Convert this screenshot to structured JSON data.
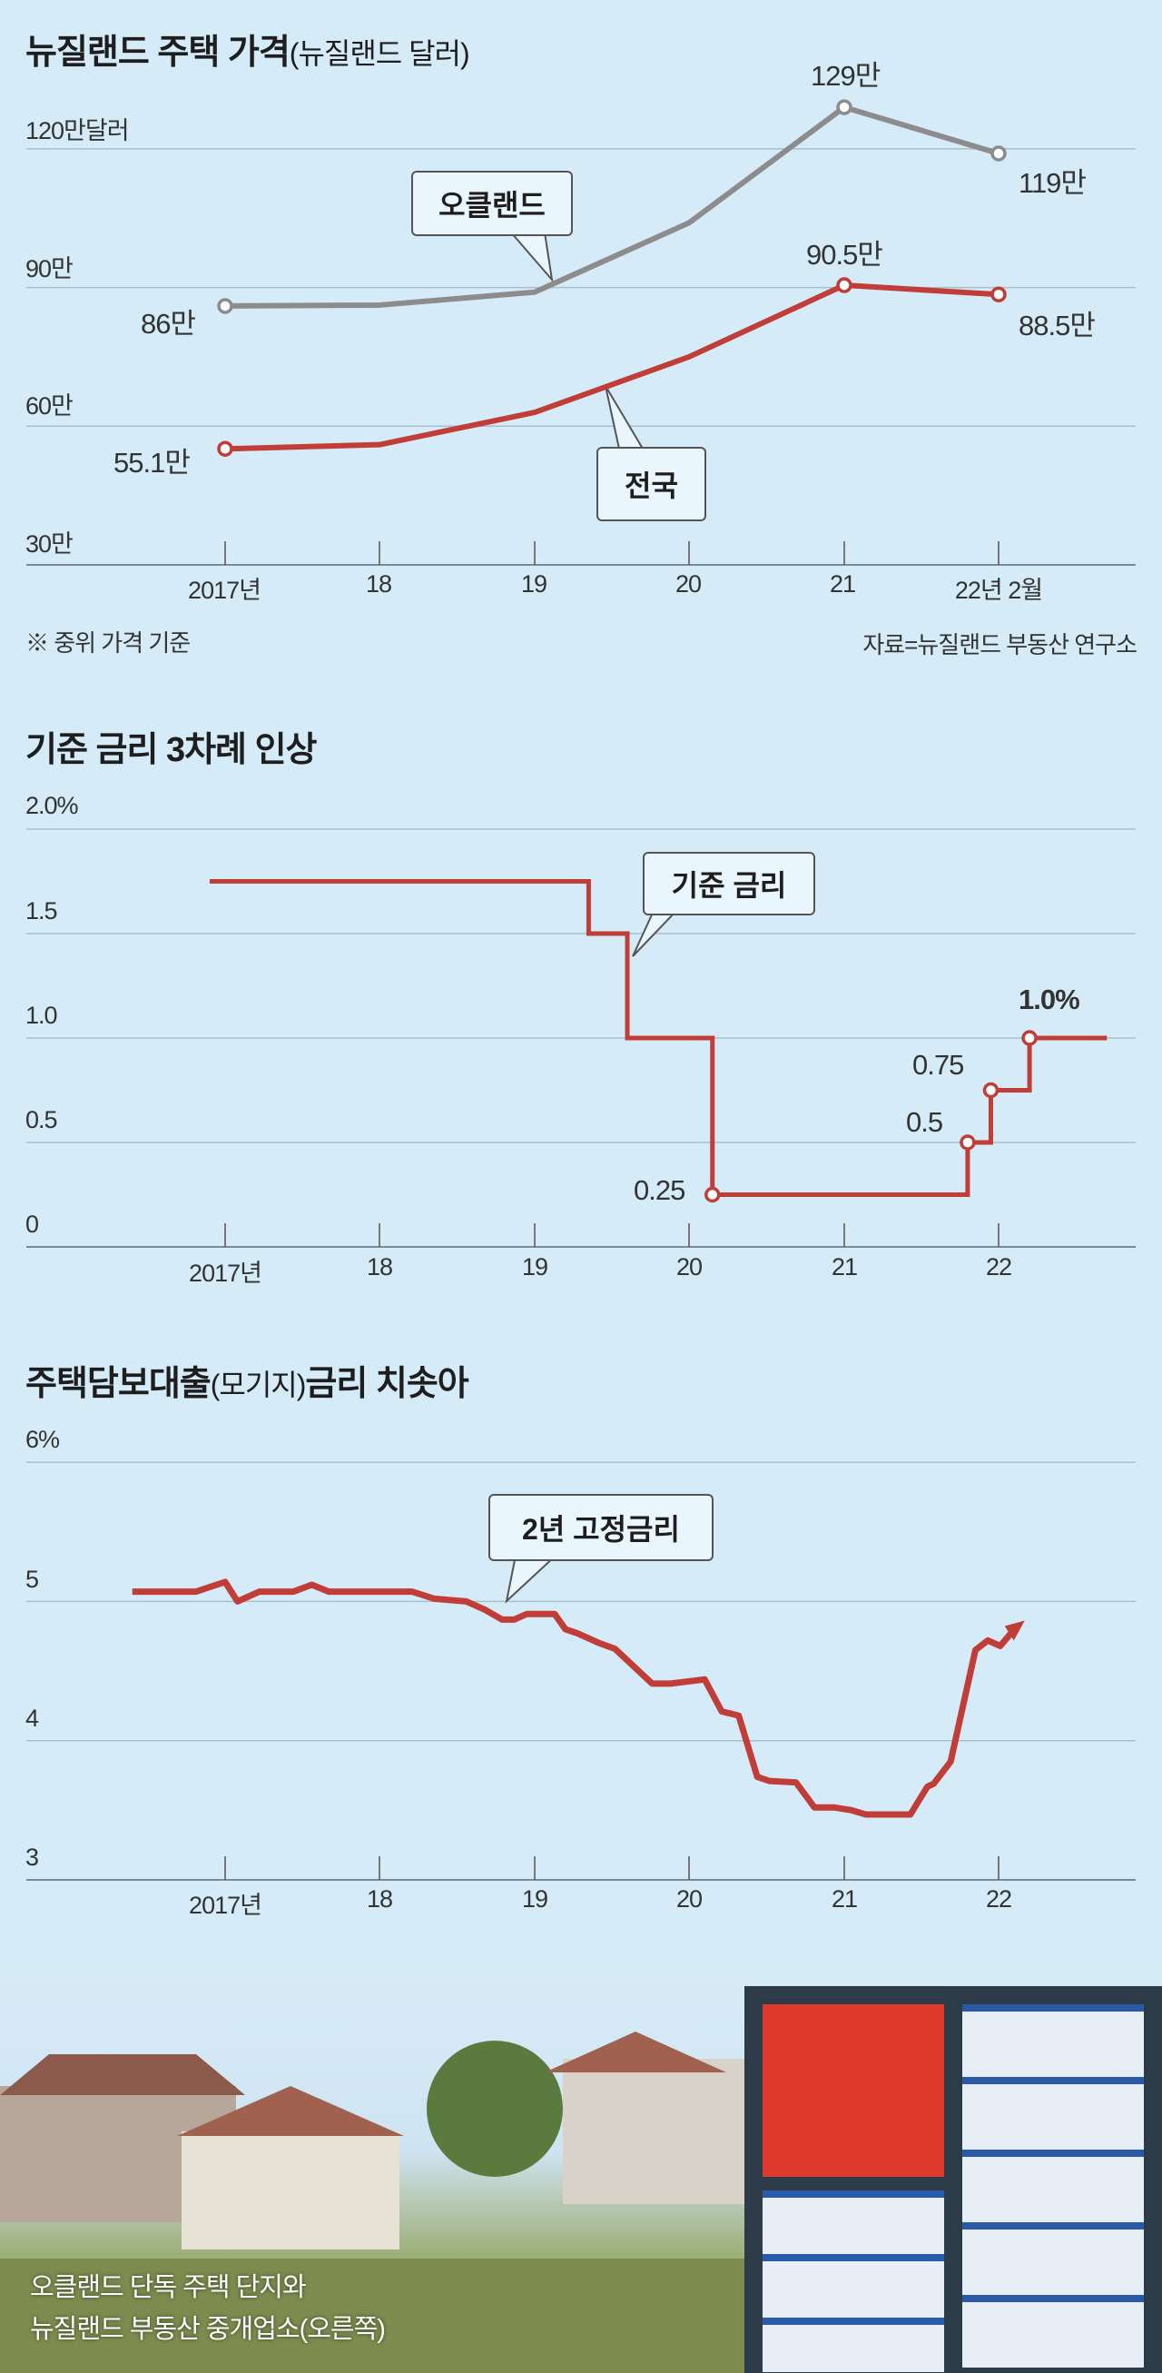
{
  "colors": {
    "background": "#d5ebf8",
    "national": "#c03d38",
    "auckland": "#8c8c8c",
    "rate": "#c03d38"
  },
  "chart_data": [
    {
      "type": "line",
      "title": "뉴질랜드 주택 가격",
      "title_sub": "(뉴질랜드 달러)",
      "categories": [
        "2017년",
        "18",
        "19",
        "20",
        "21",
        "22년 2월"
      ],
      "y_ticks": [
        "120만달러",
        "90만",
        "60만",
        "30만"
      ],
      "y_tick_values": [
        120,
        90,
        60,
        30
      ],
      "ylim": [
        30,
        129
      ],
      "series": [
        {
          "name": "오클랜드",
          "values": [
            86,
            86.2,
            89,
            104,
            129,
            119
          ]
        },
        {
          "name": "전국",
          "values": [
            55.1,
            56,
            63,
            75,
            90.5,
            88.5
          ]
        }
      ],
      "data_labels": {
        "auckland_start": "86만",
        "auckland_peak": "129만",
        "auckland_end": "119만",
        "national_start": "55.1만",
        "national_peak": "90.5만",
        "national_end": "88.5만"
      },
      "footnote": "※ 중위 가격 기준",
      "source": "자료=뉴질랜드 부동산 연구소",
      "unit": "만 뉴질랜드 달러"
    },
    {
      "type": "line",
      "title": "기준 금리 3차례 인상",
      "categories": [
        "2017년",
        "18",
        "19",
        "20",
        "21",
        "22"
      ],
      "y_ticks": [
        "2.0%",
        "1.5",
        "1.0",
        "0.5",
        "0"
      ],
      "y_tick_values": [
        2.0,
        1.5,
        1.0,
        0.5,
        0
      ],
      "ylim": [
        0,
        2.0
      ],
      "series": [
        {
          "name": "기준 금리",
          "step": true,
          "x": [
            2016.9,
            2019.35,
            2019.6,
            2020.15,
            2021.8,
            2021.95,
            2022.2,
            2022.7
          ],
          "values": [
            1.75,
            1.5,
            1.0,
            0.25,
            0.5,
            0.75,
            1.0,
            1.0
          ]
        }
      ],
      "data_labels": {
        "low": "0.25",
        "hike1": "0.5",
        "hike2": "0.75",
        "hike3": "1.0%"
      }
    },
    {
      "type": "line",
      "title": "주택담보대출",
      "title_sub": "(모기지)",
      "title_end": "금리 치솟아",
      "categories": [
        "2017년",
        "18",
        "19",
        "20",
        "21",
        "22"
      ],
      "y_ticks": [
        "6%",
        "5",
        "4",
        "3"
      ],
      "y_tick_values": [
        6,
        5,
        4,
        3
      ],
      "ylim": [
        3,
        6
      ],
      "series": [
        {
          "name": "2년 고정금리",
          "x": [
            2016.4,
            2016.81,
            2017.0,
            2017.08,
            2017.22,
            2017.44,
            2017.56,
            2017.67,
            2018.21,
            2018.35,
            2018.56,
            2018.68,
            2018.79,
            2018.87,
            2018.95,
            2019.13,
            2019.2,
            2019.28,
            2019.42,
            2019.52,
            2019.76,
            2019.88,
            2020.1,
            2020.21,
            2020.32,
            2020.44,
            2020.52,
            2020.69,
            2020.81,
            2020.94,
            2021.05,
            2021.14,
            2021.43,
            2021.54,
            2021.58,
            2021.69,
            2021.85,
            2021.93,
            2022.01,
            2022.11
          ],
          "values": [
            5.07,
            5.07,
            5.14,
            5.0,
            5.07,
            5.07,
            5.12,
            5.07,
            5.07,
            5.02,
            5.0,
            4.94,
            4.87,
            4.87,
            4.91,
            4.91,
            4.8,
            4.77,
            4.7,
            4.66,
            4.41,
            4.41,
            4.44,
            4.21,
            4.18,
            3.74,
            3.71,
            3.7,
            3.52,
            3.52,
            3.5,
            3.47,
            3.47,
            3.67,
            3.69,
            3.85,
            4.65,
            4.72,
            4.68,
            4.81
          ]
        }
      ]
    }
  ],
  "photo": {
    "caption_line1": "오클랜드 단독 주택 단지와",
    "caption_line2": "뉴질랜드 부동산 중개업소(오른쪽)"
  }
}
